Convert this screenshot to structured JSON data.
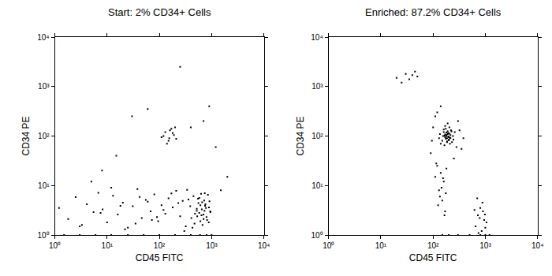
{
  "chart_data": [
    {
      "type": "scatter",
      "title": "Start: 2% CD34+ Cells",
      "x_label": "CD45 FITC",
      "y_label": "CD34 PE",
      "log": true,
      "color": "#000000",
      "marker": "dot",
      "xlim": [
        1,
        10000
      ],
      "ylim": [
        1,
        10000
      ],
      "xticks": [
        {
          "value": 1,
          "label": "10⁰"
        },
        {
          "value": 10,
          "label": "10¹"
        },
        {
          "value": 100,
          "label": "10²"
        },
        {
          "value": 1000,
          "label": "10³"
        },
        {
          "value": 10000,
          "label": "10⁴"
        }
      ],
      "yticks": [
        {
          "value": 1,
          "label": "10⁰"
        },
        {
          "value": 10,
          "label": "10¹"
        },
        {
          "value": 100,
          "label": "10²"
        },
        {
          "value": 1000,
          "label": "10³"
        },
        {
          "value": 10000,
          "label": "10⁴"
        }
      ],
      "x": [
        320,
        410,
        520,
        610,
        700,
        780,
        880,
        950,
        360,
        450,
        560,
        650,
        740,
        820,
        910,
        300,
        390,
        480,
        580,
        670,
        760,
        850,
        940,
        340,
        430,
        530,
        630,
        720,
        800,
        890,
        610,
        700,
        520,
        580,
        660,
        750,
        470,
        550,
        640,
        730,
        1.2,
        1.8,
        2.5,
        3.3,
        4.1,
        5.5,
        6.8,
        8.2,
        10,
        13,
        16,
        20,
        25,
        31,
        38,
        46,
        55,
        68,
        80,
        95,
        110,
        130,
        150,
        180,
        210,
        250,
        280,
        12,
        22,
        42,
        72,
        120,
        170,
        230,
        3.0,
        7.5,
        18,
        35,
        60,
        90,
        1.5,
        3,
        6,
        12,
        25,
        50,
        100,
        200,
        400,
        600,
        800,
        1000,
        110,
        130,
        150,
        170,
        190,
        210,
        140,
        160,
        180,
        120,
        200,
        155,
        30,
        60,
        400,
        700,
        900,
        1200,
        8,
        2000,
        250,
        15,
        5,
        1500
      ],
      "values": [
        1.5,
        2.2,
        3.1,
        4.0,
        2.6,
        3.5,
        1.8,
        2.9,
        5.2,
        6.1,
        4.4,
        3.3,
        7.0,
        2.0,
        4.8,
        1.2,
        3.8,
        2.7,
        5.6,
        1.6,
        4.2,
        6.5,
        3.0,
        8.2,
        1.4,
        2.4,
        6.8,
        5.0,
        2.3,
        3.6,
        1.9,
        2.1,
        3.4,
        2.8,
        4.6,
        3.9,
        1.7,
        5.4,
        2.5,
        3.1,
        3.5,
        2.1,
        5.8,
        1.6,
        4.2,
        2.9,
        7.1,
        3.3,
        1.8,
        6.2,
        2.6,
        4.5,
        1.4,
        3.8,
        8.5,
        2.2,
        5.1,
        3.0,
        6.6,
        1.9,
        4.0,
        2.7,
        5.5,
        3.6,
        7.8,
        2.4,
        4.9,
        9.0,
        1.3,
        5.9,
        2.0,
        3.2,
        6.9,
        4.4,
        1.5,
        2.8,
        3.9,
        1.7,
        4.7,
        2.3,
        1,
        1,
        1,
        1,
        1,
        1,
        1,
        1,
        1,
        1,
        1,
        1,
        95,
        120,
        80,
        140,
        105,
        88,
        70,
        130,
        115,
        100,
        150,
        90,
        250,
        350,
        150,
        200,
        400,
        60,
        20,
        15,
        2500,
        40,
        12,
        8
      ]
    },
    {
      "type": "scatter",
      "title": "Enriched: 87.2% CD34+ Cells",
      "x_label": "CD45 FITC",
      "y_label": "CD34 PE",
      "log": true,
      "color": "#000000",
      "marker": "dot",
      "xlim": [
        1,
        10000
      ],
      "ylim": [
        1,
        10000
      ],
      "xticks": [
        {
          "value": 1,
          "label": "10⁰"
        },
        {
          "value": 10,
          "label": "10¹"
        },
        {
          "value": 100,
          "label": "10²"
        },
        {
          "value": 1000,
          "label": "10³"
        },
        {
          "value": 10000,
          "label": "10⁴"
        }
      ],
      "yticks": [
        {
          "value": 1,
          "label": "10⁰"
        },
        {
          "value": 10,
          "label": "10¹"
        },
        {
          "value": 100,
          "label": "10²"
        },
        {
          "value": 1000,
          "label": "10³"
        },
        {
          "value": 10000,
          "label": "10⁴"
        }
      ],
      "x": [
        150,
        170,
        190,
        210,
        230,
        160,
        180,
        200,
        220,
        140,
        175,
        195,
        215,
        165,
        185,
        205,
        155,
        225,
        245,
        135,
        185,
        200,
        170,
        210,
        190,
        180,
        160,
        240,
        130,
        260,
        175,
        195,
        205,
        185,
        165,
        215,
        190,
        180,
        200,
        170,
        90,
        100,
        110,
        280,
        320,
        380,
        120,
        250,
        300,
        95,
        350,
        140,
        120,
        140,
        160,
        130,
        150,
        170,
        110,
        180,
        145,
        125,
        165,
        135,
        155,
        115,
        175,
        650,
        720,
        800,
        880,
        950,
        1050,
        700,
        850,
        900,
        780,
        1000,
        620,
        740,
        980,
        20,
        25,
        30,
        35,
        40,
        45,
        50,
        150,
        200,
        300,
        500,
        800,
        1000,
        1200
      ],
      "values": [
        80,
        95,
        110,
        90,
        75,
        120,
        100,
        85,
        130,
        70,
        140,
        115,
        105,
        65,
        90,
        150,
        100,
        125,
        85,
        110,
        75,
        95,
        160,
        70,
        180,
        105,
        135,
        100,
        90,
        120,
        88,
        98,
        112,
        78,
        102,
        92,
        125,
        118,
        82,
        108,
        45,
        150,
        250,
        60,
        130,
        90,
        300,
        35,
        200,
        80,
        55,
        400,
        25,
        18,
        12,
        8,
        5,
        3,
        15,
        22,
        9,
        4,
        2.5,
        6,
        14,
        28,
        7,
        1.5,
        2.5,
        3.5,
        4.5,
        2.0,
        1.8,
        5.5,
        1.2,
        3.0,
        2.2,
        1.4,
        3.2,
        1.1,
        2.6,
        1500,
        1200,
        1800,
        1400,
        1700,
        2000,
        1600,
        1,
        1,
        1,
        1,
        1,
        1,
        1
      ]
    }
  ]
}
